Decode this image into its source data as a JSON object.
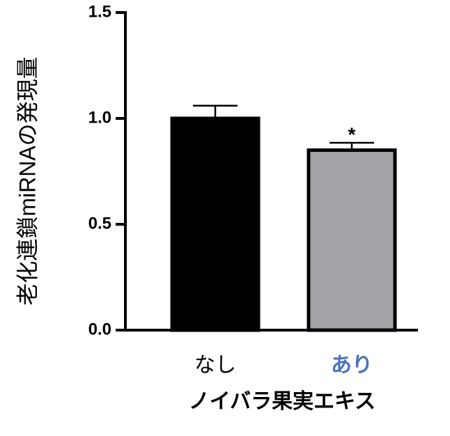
{
  "chart_data": {
    "type": "bar",
    "ylabel": "老化連鎖miRNAの発現量",
    "xlabel": "ノイバラ果実エキス",
    "categories": [
      "なし",
      "あり"
    ],
    "values": [
      1.0,
      0.85
    ],
    "errors": [
      0.06,
      0.035
    ],
    "colors": [
      "#000000",
      "#a4a4a8"
    ],
    "label_colors": [
      "#000000",
      "#4a74bb"
    ],
    "annotation": "*",
    "ylim": [
      0,
      1.5
    ],
    "yticks": [
      {
        "value": 0,
        "label": "0.0"
      },
      {
        "value": 0.5,
        "label": "0.5"
      },
      {
        "value": 1,
        "label": "1.0"
      },
      {
        "value": 1.5,
        "label": "1.5"
      }
    ]
  }
}
